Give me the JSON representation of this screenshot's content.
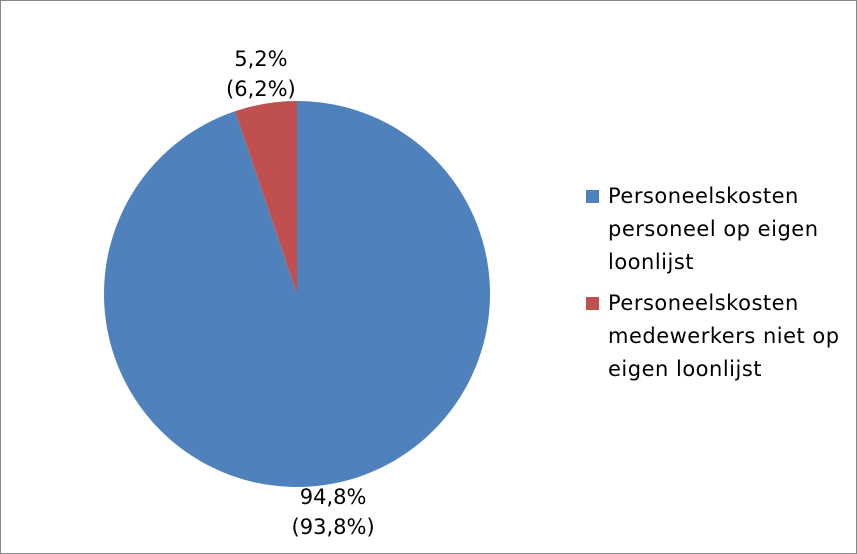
{
  "chart_data": {
    "type": "pie",
    "categories": [
      "Personeelskosten personeel op eigen loonlijst",
      "Personeelskosten medewerkers niet op eigen loonlijst"
    ],
    "values": [
      94.8,
      5.2
    ],
    "value_labels": [
      "94,8%",
      "5,2%"
    ],
    "comparison_values": [
      93.8,
      6.2
    ],
    "comparison_labels": [
      "(93,8%)",
      "(6,2%)"
    ],
    "colors": [
      "#4f81bd",
      "#c0504d"
    ],
    "start_angle": 0,
    "direction": "clockwise",
    "legend": "right"
  }
}
